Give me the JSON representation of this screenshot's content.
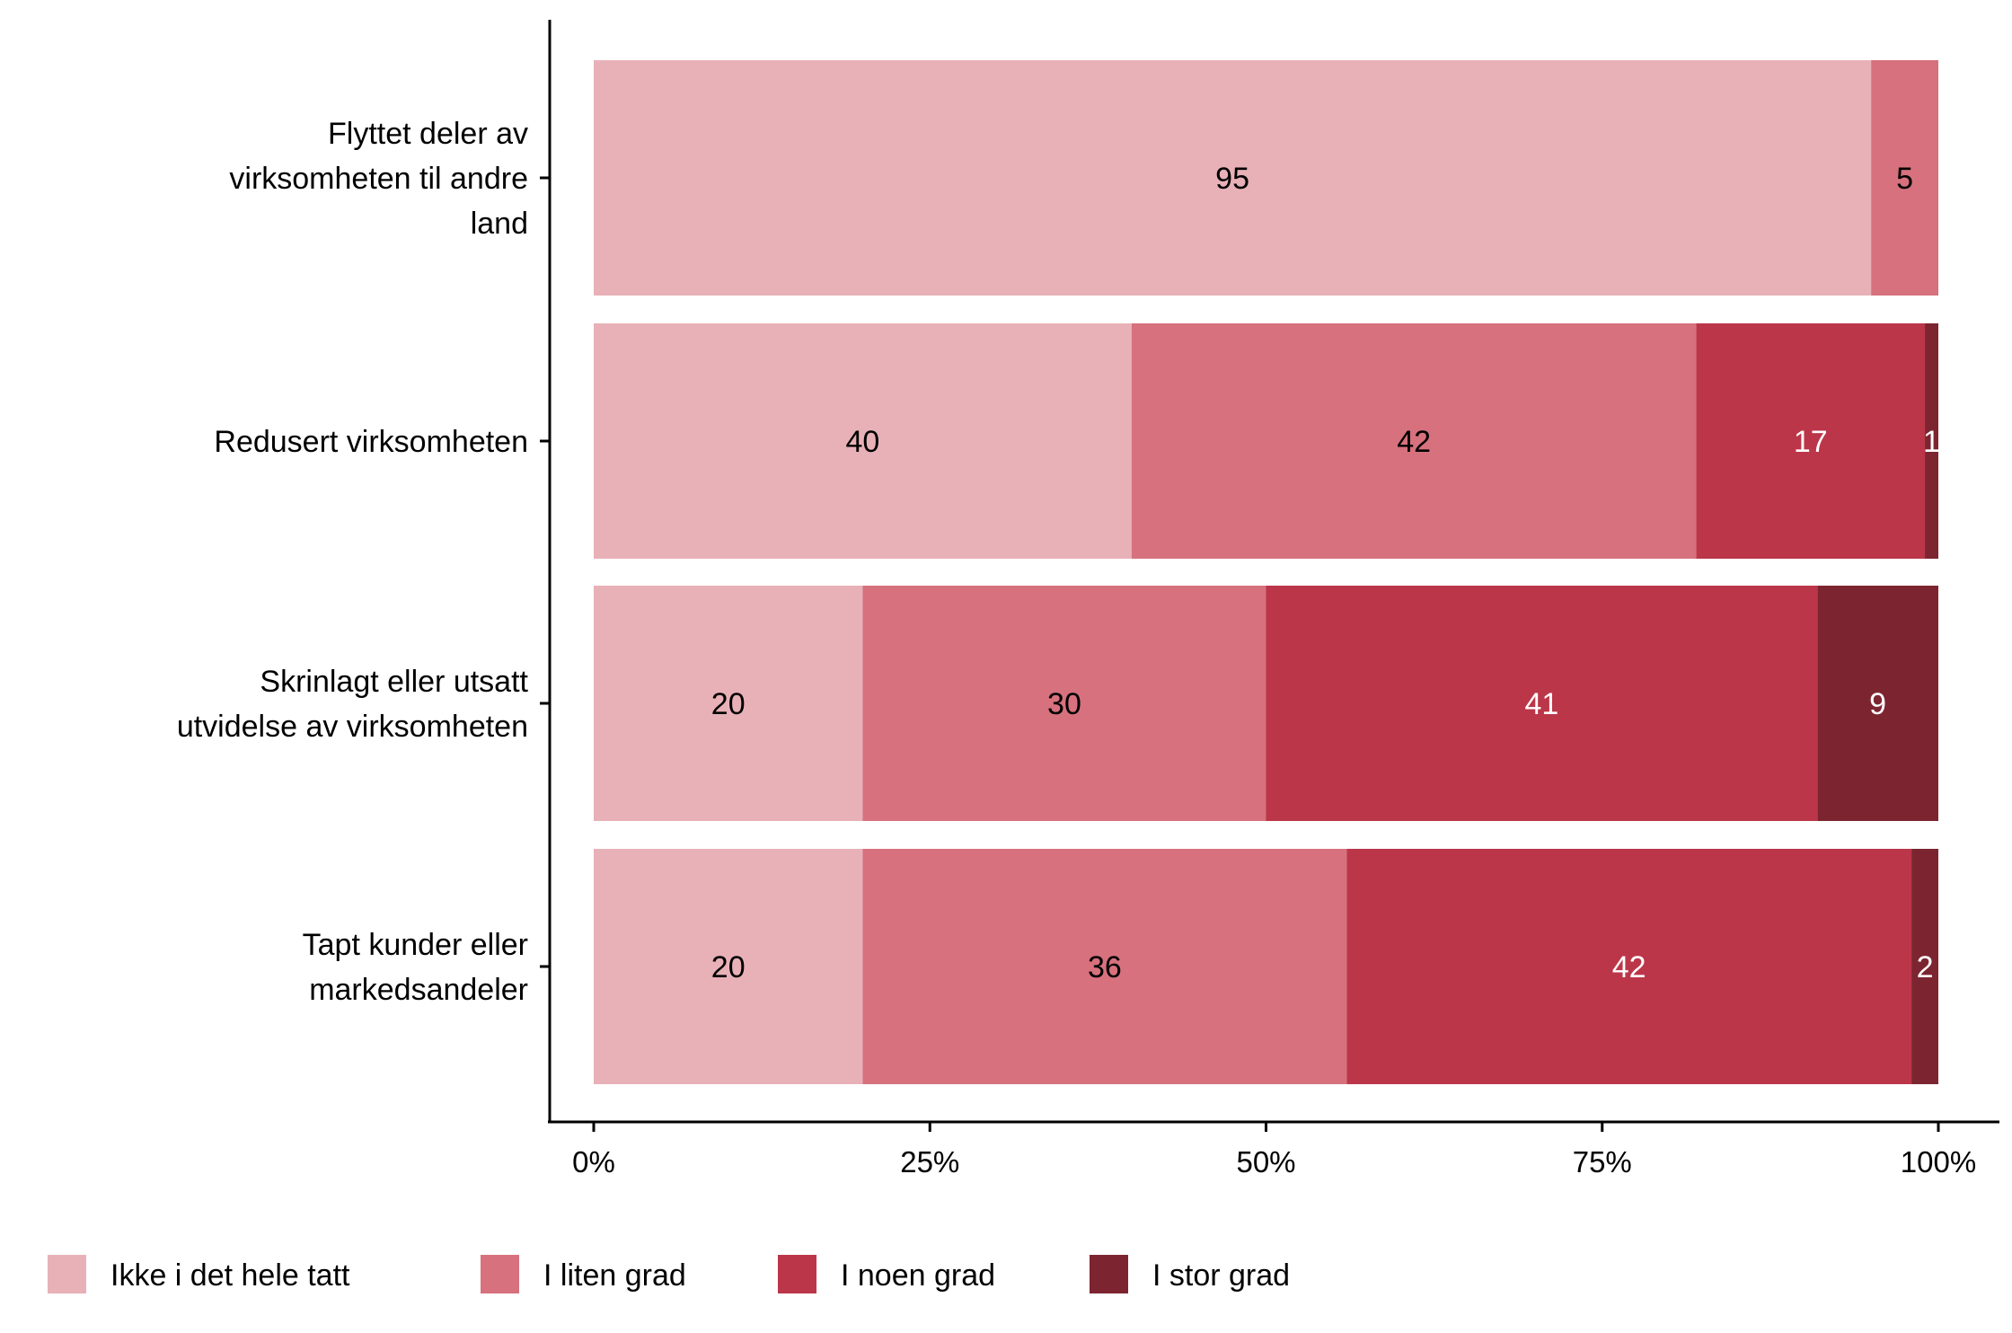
{
  "chart_data": {
    "type": "bar",
    "orientation": "horizontal",
    "stacked": true,
    "categories": [
      [
        "Flyttet deler av",
        "virksomheten til andre",
        "land"
      ],
      [
        "Redusert virksomheten"
      ],
      [
        "Skrinlagt eller utsatt",
        "utvidelse av virksomheten"
      ],
      [
        "Tapt kunder eller",
        "markedsandeler"
      ]
    ],
    "series": [
      {
        "name": "Ikke i det hele tatt",
        "color": "#e8b1b7",
        "text_color": "#000000",
        "values": [
          95,
          40,
          20,
          20
        ]
      },
      {
        "name": "I liten grad",
        "color": "#d6717d",
        "text_color": "#000000",
        "values": [
          5,
          42,
          30,
          36
        ]
      },
      {
        "name": "I noen grad",
        "color": "#bb3649",
        "text_color": "#ffffff",
        "values": [
          0,
          17,
          41,
          42
        ]
      },
      {
        "name": "I stor grad",
        "color": "#7c2530",
        "text_color": "#ffffff",
        "values": [
          0,
          1,
          9,
          2
        ]
      }
    ],
    "xlim": [
      0,
      100
    ],
    "xticks": [
      "0%",
      "25%",
      "50%",
      "75%",
      "100%"
    ],
    "title": "",
    "xlabel": "",
    "ylabel": "",
    "grid": false,
    "legend_position": "bottom"
  }
}
